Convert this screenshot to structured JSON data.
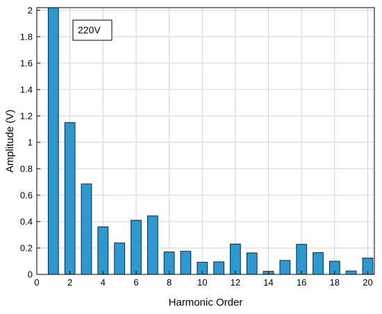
{
  "chart_data": {
    "type": "bar",
    "title": "",
    "xlabel": "Harmonic Order",
    "ylabel": "Amplitude (V)",
    "xlim": [
      0,
      20.4
    ],
    "ylim": [
      0,
      2.02
    ],
    "xticks": [
      0,
      2,
      4,
      6,
      8,
      10,
      12,
      14,
      16,
      18,
      20
    ],
    "yticks": [
      0,
      0.2,
      0.4,
      0.6,
      0.8,
      1,
      1.2,
      1.4,
      1.6,
      1.8,
      2
    ],
    "grid": true,
    "annotation": "220V",
    "annotation_placement": "top-left",
    "bar_color": "#2b98d0",
    "x": [
      1,
      2,
      3,
      4,
      5,
      6,
      7,
      8,
      9,
      10,
      11,
      12,
      13,
      14,
      15,
      16,
      17,
      18,
      19,
      20
    ],
    "values": [
      2.02,
      1.15,
      0.685,
      0.36,
      0.238,
      0.41,
      0.443,
      0.17,
      0.175,
      0.092,
      0.095,
      0.23,
      0.163,
      0.023,
      0.106,
      0.228,
      0.165,
      0.1,
      0.026,
      0.124
    ]
  }
}
